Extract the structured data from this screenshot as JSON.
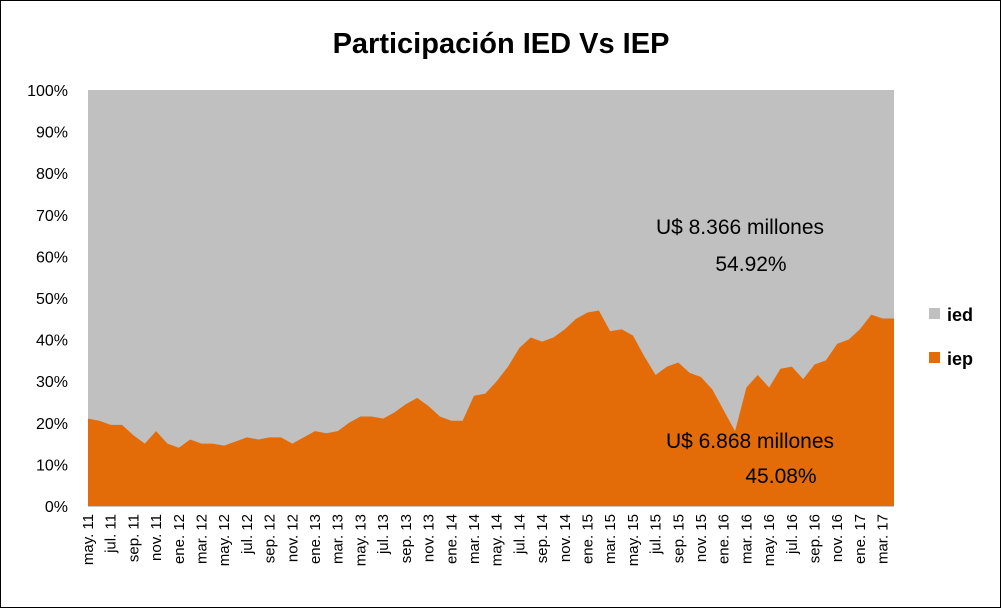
{
  "chart_data": {
    "type": "area",
    "title": "Participación IED Vs IEP",
    "stacked_percent": true,
    "ylim": [
      0,
      100
    ],
    "y_ticks": [
      "0%",
      "10%",
      "20%",
      "30%",
      "40%",
      "50%",
      "60%",
      "70%",
      "80%",
      "90%",
      "100%"
    ],
    "x_tick_labels": [
      "may. 11",
      "jul. 11",
      "sep. 11",
      "nov. 11",
      "ene. 12",
      "mar. 12",
      "may. 12",
      "jul. 12",
      "sep. 12",
      "nov. 12",
      "ene. 13",
      "mar. 13",
      "may. 13",
      "jul. 13",
      "sep. 13",
      "nov. 13",
      "ene. 14",
      "mar. 14",
      "may. 14",
      "jul. 14",
      "sep. 14",
      "nov. 14",
      "ene. 15",
      "mar. 15",
      "may. 15",
      "jul. 15",
      "sep. 15",
      "nov. 15",
      "ene. 16",
      "mar. 16",
      "may. 16",
      "jul. 16",
      "sep. 16",
      "nov. 16",
      "ene. 17",
      "mar. 17"
    ],
    "x": [
      "may. 11",
      "jun. 11",
      "jul. 11",
      "ago. 11",
      "sep. 11",
      "oct. 11",
      "nov. 11",
      "dic. 11",
      "ene. 12",
      "feb. 12",
      "mar. 12",
      "abr. 12",
      "may. 12",
      "jun. 12",
      "jul. 12",
      "ago. 12",
      "sep. 12",
      "oct. 12",
      "nov. 12",
      "dic. 12",
      "ene. 13",
      "feb. 13",
      "mar. 13",
      "abr. 13",
      "may. 13",
      "jun. 13",
      "jul. 13",
      "ago. 13",
      "sep. 13",
      "oct. 13",
      "nov. 13",
      "dic. 13",
      "ene. 14",
      "feb. 14",
      "mar. 14",
      "abr. 14",
      "may. 14",
      "jun. 14",
      "jul. 14",
      "ago. 14",
      "sep. 14",
      "oct. 14",
      "nov. 14",
      "dic. 14",
      "ene. 15",
      "feb. 15",
      "mar. 15",
      "abr. 15",
      "may. 15",
      "jun. 15",
      "jul. 15",
      "ago. 15",
      "sep. 15",
      "oct. 15",
      "nov. 15",
      "dic. 15",
      "ene. 16",
      "feb. 16",
      "mar. 16",
      "abr. 16",
      "may. 16",
      "jun. 16",
      "jul. 16",
      "ago. 16",
      "sep. 16",
      "oct. 16",
      "nov. 16",
      "dic. 16",
      "ene. 17",
      "feb. 17",
      "mar. 17",
      "abr. 17"
    ],
    "series": [
      {
        "name": "iep",
        "color": "#E36C09",
        "values": [
          21,
          20.5,
          19.5,
          19.5,
          17,
          15,
          18,
          15,
          14,
          16,
          15,
          15,
          14.5,
          15.5,
          16.5,
          16,
          16.5,
          16.5,
          15,
          16.5,
          18,
          17.5,
          18,
          20,
          21.5,
          21.5,
          21,
          22.5,
          24.5,
          26,
          24,
          21.5,
          20.5,
          20.5,
          26.5,
          27,
          30,
          33.5,
          38,
          40.5,
          39.5,
          40.5,
          42.5,
          45,
          46.5,
          47,
          42,
          42.5,
          41,
          36,
          31.5,
          33.5,
          34.5,
          32,
          31,
          28,
          23,
          18,
          28.5,
          31.5,
          28.5,
          33,
          33.5,
          30.5,
          34,
          35,
          39,
          40,
          42.5,
          46,
          45.08,
          45.08
        ]
      },
      {
        "name": "ied",
        "color": "#C0C0C0",
        "values": [
          79,
          79.5,
          80.5,
          80.5,
          83,
          85,
          82,
          85,
          86,
          84,
          85,
          85,
          85.5,
          84.5,
          83.5,
          84,
          83.5,
          83.5,
          85,
          83.5,
          82,
          82.5,
          82,
          80,
          78.5,
          78.5,
          79,
          77.5,
          75.5,
          74,
          76,
          78.5,
          79.5,
          79.5,
          73.5,
          73,
          70,
          66.5,
          62,
          59.5,
          60.5,
          59.5,
          57.5,
          55,
          53.5,
          53,
          58,
          57.5,
          59,
          64,
          68.5,
          66.5,
          65.5,
          68,
          69,
          72,
          77,
          82,
          71.5,
          68.5,
          71.5,
          67,
          66.5,
          69.5,
          66,
          65,
          61,
          60,
          57.5,
          54,
          54.92,
          54.92
        ]
      }
    ],
    "legend": {
      "position": "right",
      "entries": [
        "ied",
        "iep"
      ]
    },
    "annotations": [
      {
        "id": "ied",
        "lines": [
          "U$ 8.366 millones",
          "54.92%"
        ]
      },
      {
        "id": "iep",
        "lines": [
          "U$ 6.868 millones",
          "45.08%"
        ]
      }
    ],
    "grid": false
  }
}
